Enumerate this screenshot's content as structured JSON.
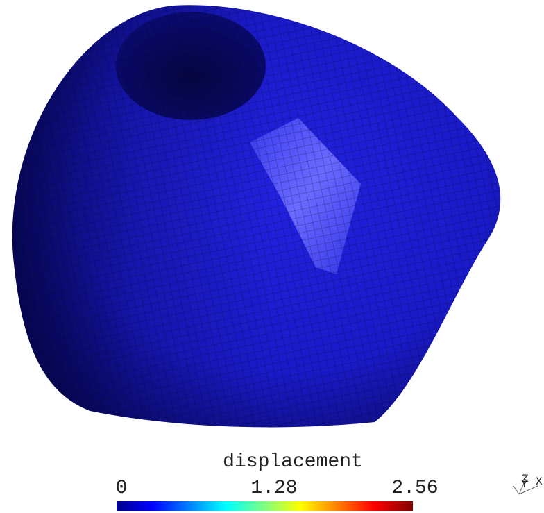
{
  "colorbar": {
    "title": "displacement",
    "ticks": [
      0,
      1.28,
      2.56
    ]
  },
  "triad": {
    "labels": [
      "Z",
      "Y",
      "X"
    ]
  }
}
